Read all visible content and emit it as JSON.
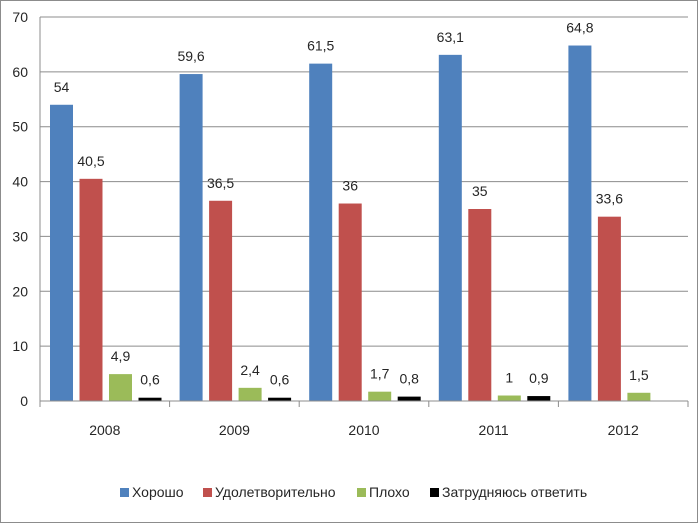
{
  "chart_data": {
    "type": "bar",
    "categories": [
      "2008",
      "2009",
      "2010",
      "2011",
      "2012"
    ],
    "series": [
      {
        "name": "Хорошо",
        "color": "#4f81bd",
        "values": [
          54,
          59.6,
          61.5,
          63.1,
          64.8
        ],
        "labels": [
          "54",
          "59,6",
          "61,5",
          "63,1",
          "64,8"
        ]
      },
      {
        "name": "Удолетворительно",
        "color": "#c0504d",
        "values": [
          40.5,
          36.5,
          36,
          35,
          33.6
        ],
        "labels": [
          "40,5",
          "36,5",
          "36",
          "35",
          "33,6"
        ]
      },
      {
        "name": "Плохо",
        "color": "#9bbb59",
        "values": [
          4.9,
          2.4,
          1.7,
          1,
          1.5
        ],
        "labels": [
          "4,9",
          "2,4",
          "1,7",
          "1",
          "1,5"
        ]
      },
      {
        "name": "Затрудняюсь ответить",
        "color": "#000000",
        "values": [
          0.6,
          0.6,
          0.8,
          0.9,
          null
        ],
        "labels": [
          "0,6",
          "0,6",
          "0,8",
          "0,9",
          null
        ]
      }
    ],
    "ylim": [
      0,
      70
    ],
    "yticks": [
      "0",
      "10",
      "20",
      "30",
      "40",
      "50",
      "60",
      "70"
    ],
    "grid": true,
    "legend_position": "bottom"
  }
}
